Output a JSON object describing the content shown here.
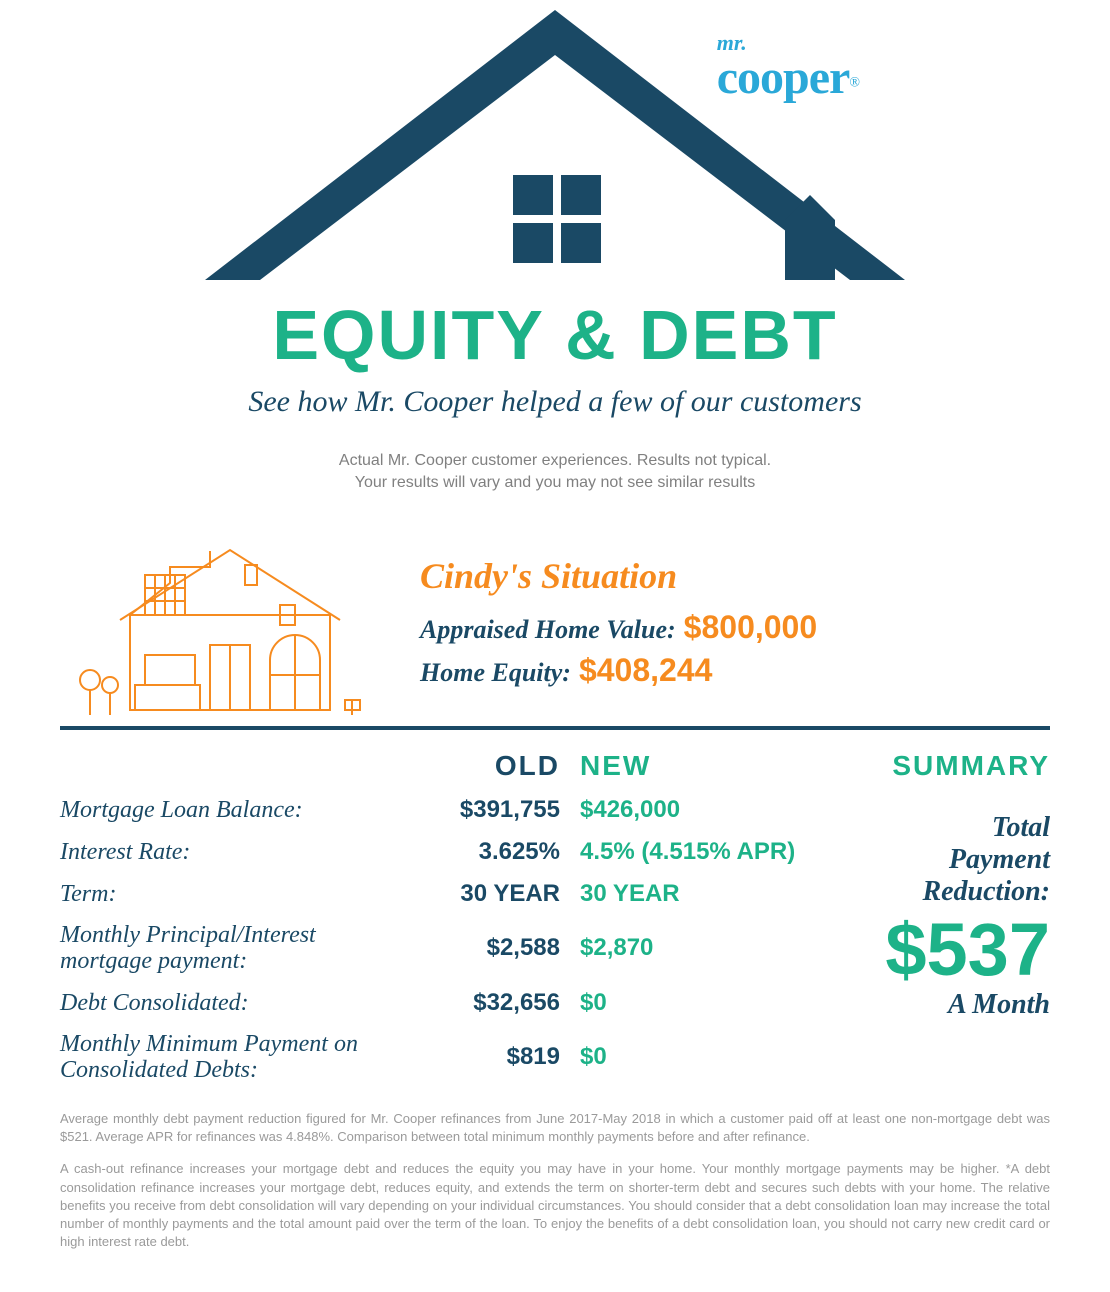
{
  "colors": {
    "navy": "#1a4965",
    "teal": "#1db288",
    "orange": "#f68b1f",
    "cyan": "#2aa8d8",
    "gray": "#808080",
    "lightgray": "#9a9a9a"
  },
  "logo": {
    "mr": "mr.",
    "cooper": "cooper",
    "reg": "®",
    "color": "#2aa8d8"
  },
  "title": {
    "text": "EQUITY & DEBT",
    "color": "#1db288"
  },
  "subtitle": {
    "text": "See how Mr. Cooper helped a few of our customers",
    "color": "#1a4965"
  },
  "disclaimer_top": {
    "line1": "Actual Mr. Cooper customer experiences.  Results not typical.",
    "line2": "Your results will vary and you may not see similar results",
    "color": "#808080"
  },
  "house_icon": {
    "stroke": "#f68b1f",
    "stroke_width": 2
  },
  "situation": {
    "title": "Cindy's Situation",
    "title_color": "#f68b1f",
    "rows": [
      {
        "label": "Appraised Home Value:",
        "value": "$800,000"
      },
      {
        "label": "Home Equity:",
        "value": "$408,244"
      }
    ],
    "label_color": "#1a4965",
    "value_color": "#f68b1f"
  },
  "divider_color": "#1a4965",
  "table": {
    "label_color": "#1a4965",
    "old_header": "OLD",
    "new_header": "NEW",
    "old_color": "#1a4965",
    "new_color": "#1db288",
    "rows": [
      {
        "label": "Mortgage Loan Balance:",
        "old": "$391,755",
        "new": "$426,000"
      },
      {
        "label": "Interest Rate:",
        "old": "3.625%",
        "new": "4.5% (4.515% APR)"
      },
      {
        "label": "Term:",
        "old": "30 YEAR",
        "new": "30 YEAR"
      },
      {
        "label": "Monthly Principal/Interest mortgage payment:",
        "old": "$2,588",
        "new": "$2,870"
      },
      {
        "label": "Debt Consolidated:",
        "old": "$32,656",
        "new": "$0"
      },
      {
        "label": "Monthly Minimum Payment on Consolidated Debts:",
        "old": "$819",
        "new": "$0"
      }
    ]
  },
  "summary": {
    "header": "SUMMARY",
    "header_color": "#1db288",
    "label": "Total Payment Reduction:",
    "label_color": "#1a4965",
    "value": "$537",
    "value_color": "#1db288",
    "unit": "A Month",
    "unit_color": "#1a4965"
  },
  "footnotes": {
    "color": "#9a9a9a",
    "p1": "Average monthly debt payment reduction figured for Mr. Cooper refinances from June 2017-May 2018 in which a customer paid off at least one non-mortgage debt was $521. Average APR for refinances was 4.848%. Comparison between total minimum monthly payments before and after refinance.",
    "p2": "A cash-out refinance increases your mortgage debt and reduces the equity you may have in your home. Your monthly mortgage payments may be higher. *A debt consolidation refinance increases your mortgage debt, reduces equity, and extends the term on shorter-term debt and secures such debts with your home. The relative benefits you receive from debt consolidation will vary depending on your individual circumstances. You should consider that a debt consolidation loan may increase the total number of monthly payments and the total amount paid over the term of the loan. To enjoy the benefits of a debt consolidation loan, you should not carry new credit card or high interest rate debt."
  }
}
